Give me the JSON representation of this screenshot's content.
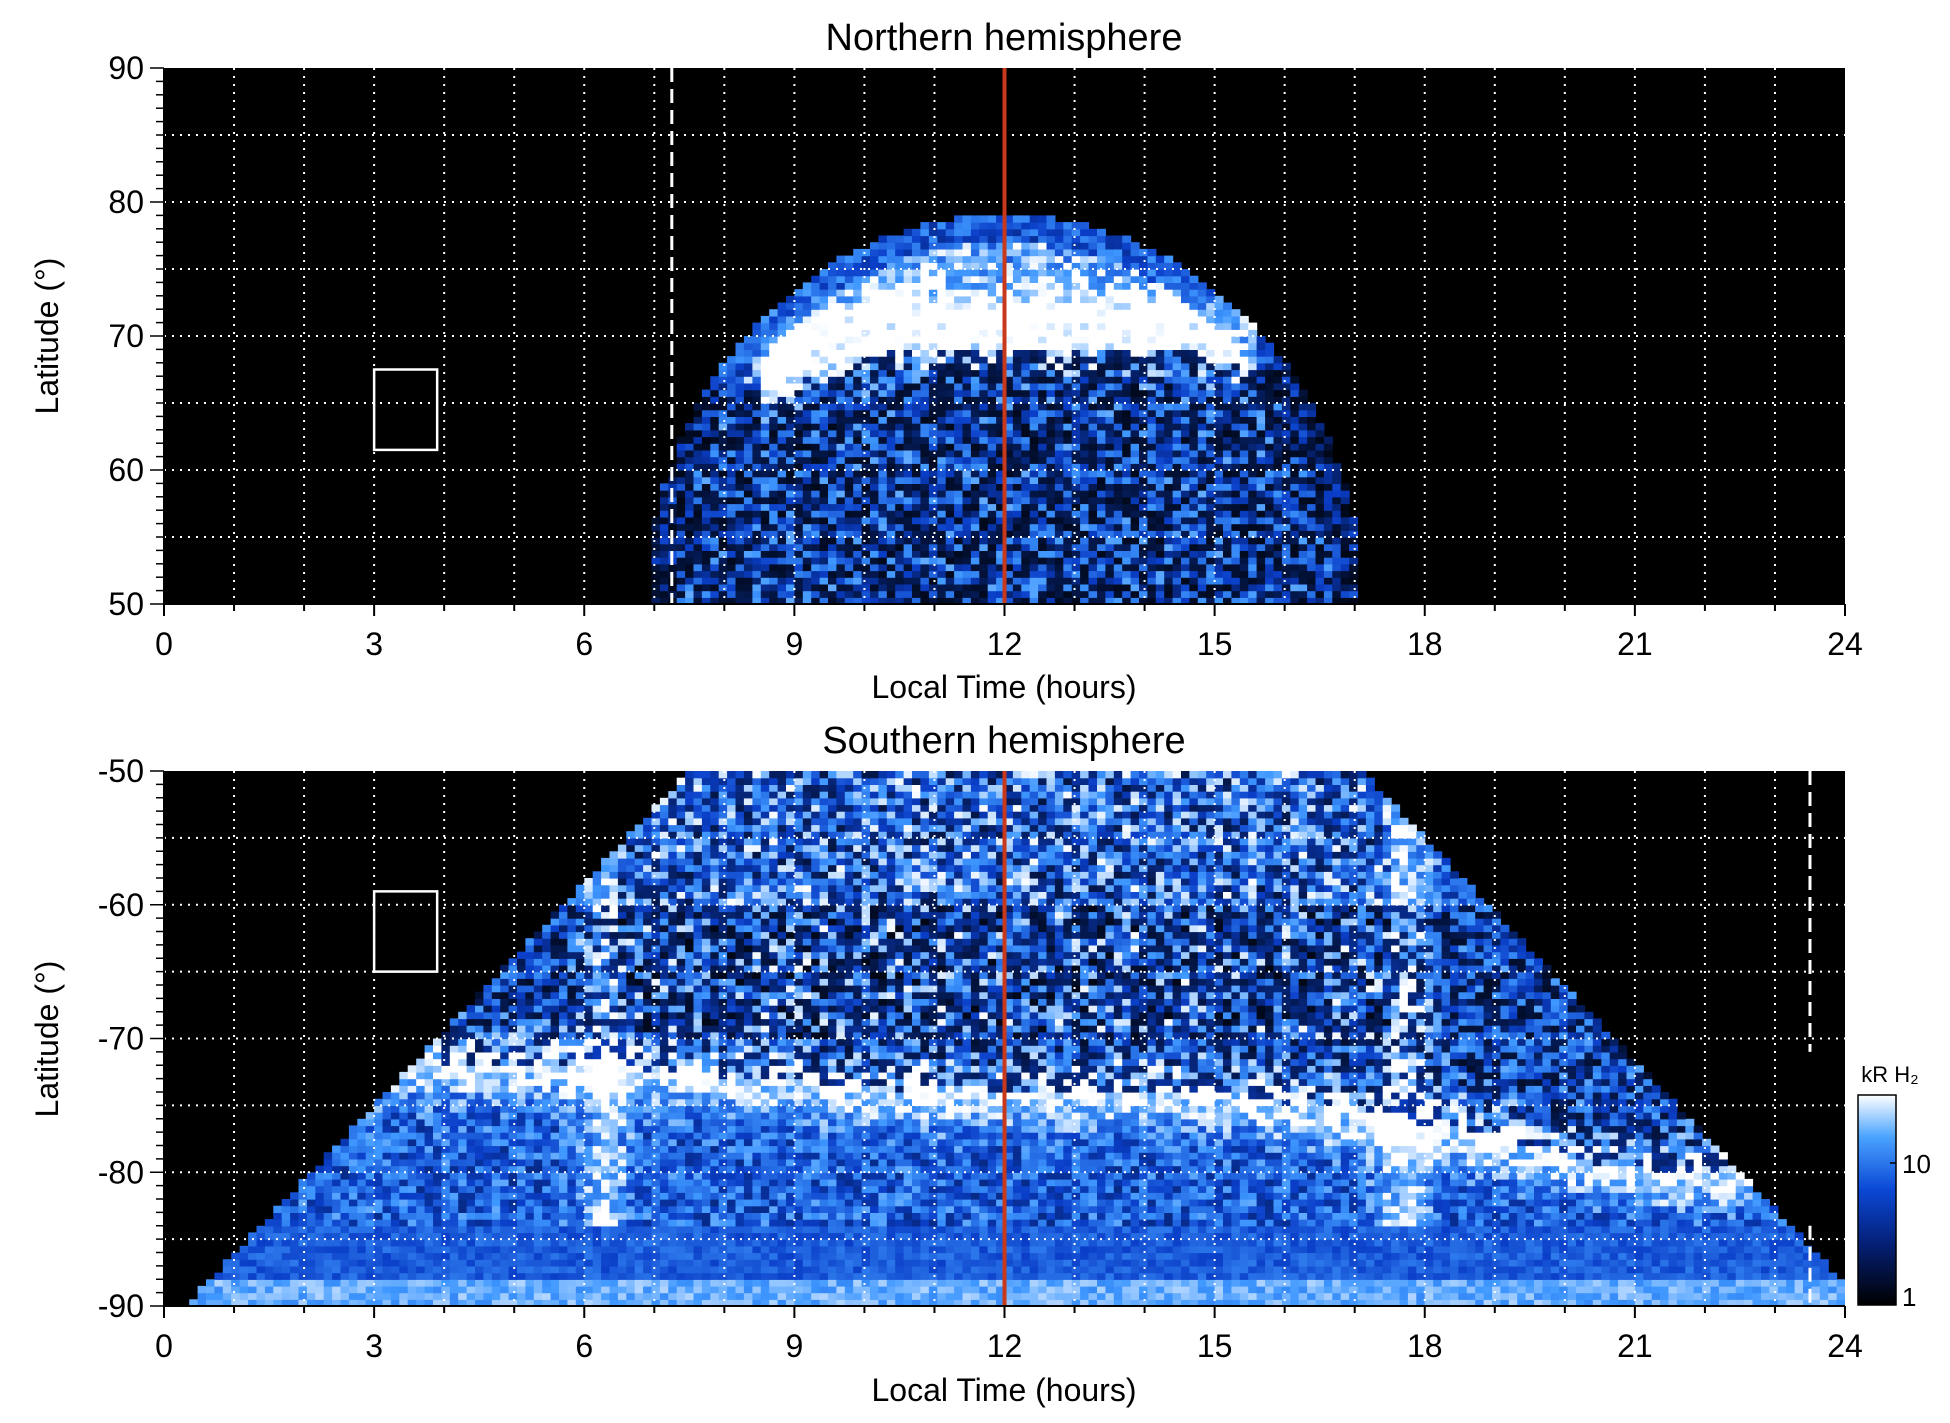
{
  "colors": {
    "background": "#000000",
    "emission_low": "#000000",
    "emission_mid": "#0a3ec8",
    "emission_high": "#3f98ff",
    "emission_peak": "#ffffff",
    "noon_line": "#c8381a",
    "grid": "#ffffff",
    "box": "#ffffff"
  },
  "colorbar": {
    "label": "kR H₂",
    "ticks": [
      "10",
      "1"
    ],
    "scale": "log",
    "range": [
      1,
      30
    ]
  },
  "chart_data": [
    {
      "type": "heatmap",
      "title": "Northern hemisphere",
      "xlabel": "Local Time (hours)",
      "ylabel": "Latitude (°)",
      "xlim": [
        0,
        24
      ],
      "ylim": [
        50,
        90
      ],
      "xticks": [
        "0",
        "3",
        "6",
        "9",
        "12",
        "15",
        "18",
        "21",
        "24"
      ],
      "yticks": [
        "90",
        "80",
        "70",
        "60",
        "50"
      ],
      "grid": true,
      "noon_line_lt": 12,
      "terminator_lt": 7.25,
      "box": {
        "lt": [
          3,
          3.9
        ],
        "lat": [
          61.5,
          67.5
        ]
      },
      "emission": {
        "description_lt_range": [
          7,
          17.2
        ],
        "polar_edge_lat_max": 79,
        "auroral_oval": [
          {
            "lt": 8.8,
            "lat": 67
          },
          {
            "lt": 9.5,
            "lat": 68.5
          },
          {
            "lt": 10.5,
            "lat": 70
          },
          {
            "lt": 12,
            "lat": 70
          },
          {
            "lt": 13.5,
            "lat": 70
          },
          {
            "lt": 14.5,
            "lat": 70
          },
          {
            "lt": 15.3,
            "lat": 69
          }
        ]
      }
    },
    {
      "type": "heatmap",
      "title": "Southern hemisphere",
      "xlabel": "Local Time (hours)",
      "ylabel": "Latitude (°)",
      "xlim": [
        0,
        24
      ],
      "ylim": [
        -90,
        -50
      ],
      "xticks": [
        "0",
        "3",
        "6",
        "9",
        "12",
        "15",
        "18",
        "21",
        "24"
      ],
      "yticks": [
        "-50",
        "-60",
        "-70",
        "-80",
        "-90"
      ],
      "grid": true,
      "noon_line_lt": 12,
      "terminator_lt": 23.5,
      "box": {
        "lt": [
          3,
          3.9
        ],
        "lat": [
          -65,
          -59
        ]
      },
      "emission": {
        "description_lt_range": [
          0,
          24
        ],
        "auroral_oval": [
          {
            "lt": 6.3,
            "lat": -72
          },
          {
            "lt": 8.5,
            "lat": -73
          },
          {
            "lt": 10,
            "lat": -74
          },
          {
            "lt": 12,
            "lat": -74
          },
          {
            "lt": 15,
            "lat": -74
          },
          {
            "lt": 17.5,
            "lat": -76
          },
          {
            "lt": 19.5,
            "lat": -78
          },
          {
            "lt": 21,
            "lat": -80
          }
        ]
      }
    }
  ]
}
